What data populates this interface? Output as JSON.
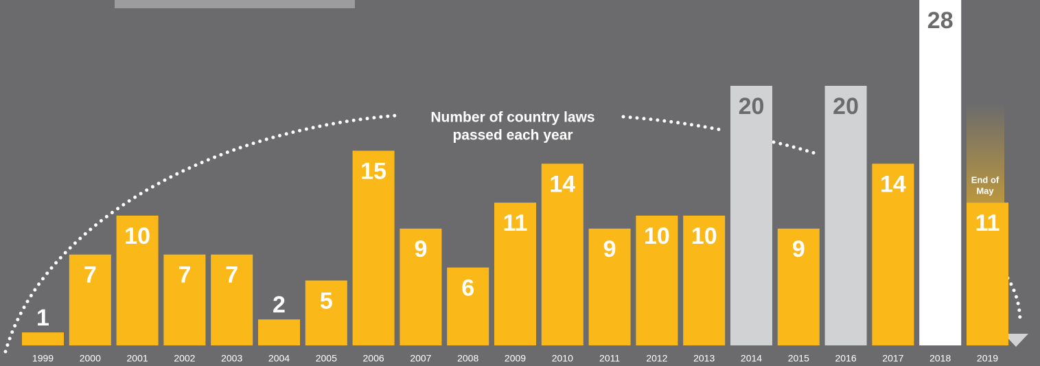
{
  "chart_data": {
    "type": "bar",
    "title": [
      "Number of country laws",
      "passed each year"
    ],
    "categories": [
      "1999",
      "2000",
      "2001",
      "2002",
      "2003",
      "2004",
      "2005",
      "2006",
      "2007",
      "2008",
      "2009",
      "2010",
      "2011",
      "2012",
      "2013",
      "2014",
      "2015",
      "2016",
      "2017",
      "2018",
      "2019"
    ],
    "values": [
      1,
      7,
      10,
      7,
      7,
      2,
      5,
      15,
      9,
      6,
      11,
      14,
      9,
      10,
      10,
      20,
      9,
      20,
      14,
      28,
      11
    ],
    "colors": [
      "#fbb919",
      "#fbb919",
      "#fbb919",
      "#fbb919",
      "#fbb919",
      "#fbb919",
      "#fbb919",
      "#fbb919",
      "#fbb919",
      "#fbb919",
      "#fbb919",
      "#fbb919",
      "#fbb919",
      "#fbb919",
      "#fbb919",
      "#d1d2d4",
      "#fbb919",
      "#d1d2d4",
      "#fbb919",
      "#ffffff",
      "#fbb919"
    ],
    "label_colors": [
      "#ffffff",
      "#ffffff",
      "#ffffff",
      "#ffffff",
      "#ffffff",
      "#ffffff",
      "#ffffff",
      "#ffffff",
      "#ffffff",
      "#ffffff",
      "#ffffff",
      "#ffffff",
      "#ffffff",
      "#ffffff",
      "#ffffff",
      "#6b6b6d",
      "#ffffff",
      "#6b6b6d",
      "#ffffff",
      "#6b6b6d",
      "#ffffff"
    ],
    "note": [
      "End of",
      "May"
    ]
  }
}
